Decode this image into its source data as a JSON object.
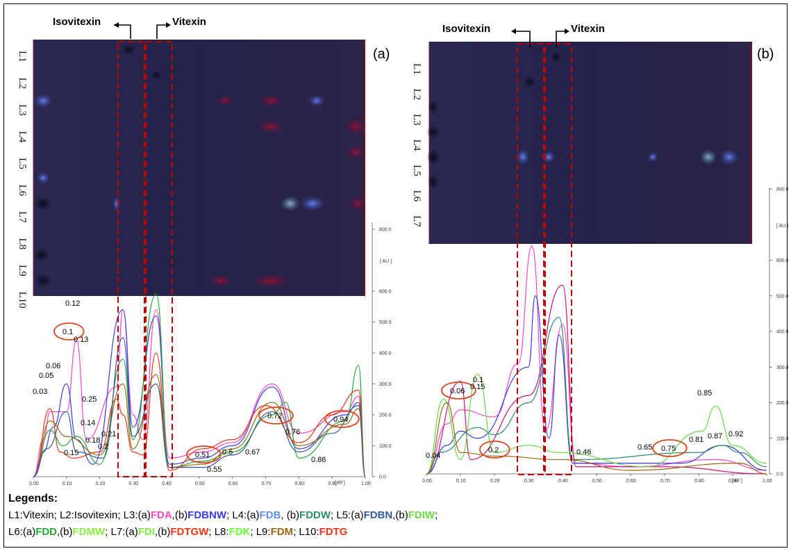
{
  "colors": {
    "plate": "#24234a",
    "guide": "#c00000",
    "circle": "#d9441a",
    "FDA": "#ff44cc",
    "FDBNW": "#3a3ae0",
    "FDB": "#5d8ef0",
    "FDDW": "#2e8b6b",
    "FDBN": "#33579a",
    "FDIW": "#66dd44",
    "FDD": "#22aa33",
    "FDMW": "#88ee44",
    "FDI": "#77ee44",
    "FDTGW": "#ee3311",
    "FDK": "#66ff33",
    "FDM": "#996611",
    "FDTG": "#ee3311"
  },
  "annotations": {
    "isovitexin": "Isovitexin",
    "vitexin": "Vitexin"
  },
  "panels": [
    {
      "id": "(a)",
      "lanes": [
        "L1",
        "L2",
        "L3",
        "L4",
        "L5",
        "L6",
        "L7",
        "L8",
        "L9",
        "L10"
      ],
      "au_label": "[ AU ]",
      "rf_label": "[ Rf ]",
      "y_ticks": [
        "0.0",
        "100.0",
        "200.0",
        "300.0",
        "400.0",
        "500.0",
        "600.0",
        "800.0"
      ],
      "x_ticks": [
        "0.00",
        "0.10",
        "0.20",
        "0.30",
        "0.40",
        "0.50",
        "0.60",
        "0.70",
        "0.80",
        "0.90",
        "1.00"
      ],
      "peak_labels": [
        "0.03",
        "0.05",
        "0.06",
        "0.1",
        "0.12",
        "0.13",
        "0.14",
        "0.18",
        "0.15",
        "0.2",
        "0.21",
        "0.25",
        "0.51",
        "0.55",
        "0.6",
        "0.67",
        "0.72",
        "0.76",
        "0.86",
        "0.94"
      ],
      "circled": [
        "0.1",
        "0.51",
        "0.72",
        "0.94"
      ]
    },
    {
      "id": "(b)",
      "lanes": [
        "L1",
        "L2",
        "L3",
        "L4",
        "L5",
        "L6",
        "L7"
      ],
      "au_label": "[ AU ]",
      "rf_label": "[ Rf ]",
      "y_ticks": [
        "0.0",
        "100.0",
        "200.0",
        "300.0",
        "400.0",
        "500.0",
        "600.0",
        "800.0"
      ],
      "x_ticks": [
        "0.00",
        "0.10",
        "0.20",
        "0.30",
        "0.40",
        "0.50",
        "0.60",
        "0.70",
        "0.80",
        "0.90",
        "1.00"
      ],
      "peak_labels": [
        "0.04",
        "0.06",
        "0.1",
        "0.15",
        "0.2",
        "0.46",
        "0.65",
        "0.75",
        "0.81",
        "0.85",
        "0.87",
        "0.92"
      ],
      "circled": [
        "0.06",
        "0.2",
        "0.75"
      ]
    }
  ],
  "legend": {
    "title": "Legends:",
    "line1": [
      {
        "t": "L1:Vitexin; L2:Isovitexin; L3:(a)"
      },
      {
        "t": "FDA",
        "c": "FDA"
      },
      {
        "t": ",(b)"
      },
      {
        "t": "FDBNW",
        "c": "FDBNW"
      },
      {
        "t": "; L4:(a)"
      },
      {
        "t": "FDB",
        "c": "FDB"
      },
      {
        "t": ", (b)"
      },
      {
        "t": "FDDW",
        "c": "FDDW"
      },
      {
        "t": "; L5:(a)"
      },
      {
        "t": "FDBN",
        "c": "FDBN"
      },
      {
        "t": ",(b)"
      },
      {
        "t": "FDIW",
        "c": "FDIW"
      },
      {
        "t": ";"
      }
    ],
    "line2": [
      {
        "t": "L6:(a)"
      },
      {
        "t": "FDD",
        "c": "FDD"
      },
      {
        "t": ",(b)"
      },
      {
        "t": "FDMW",
        "c": "FDMW"
      },
      {
        "t": "; L7:(a)"
      },
      {
        "t": "FDI",
        "c": "FDI"
      },
      {
        "t": ",(b)"
      },
      {
        "t": "FDTGW",
        "c": "FDTGW"
      },
      {
        "t": "; L8:"
      },
      {
        "t": "FDK",
        "c": "FDK"
      },
      {
        "t": "; L9:"
      },
      {
        "t": "FDM",
        "c": "FDM"
      },
      {
        "t": "; L10:"
      },
      {
        "t": "FDTG",
        "c": "FDTG"
      }
    ]
  },
  "chart_data": [
    {
      "type": "line",
      "panel": "(a)",
      "title": "",
      "xlabel": "[ Rf ]",
      "ylabel": "[ AU ]",
      "xlim": [
        0,
        1
      ],
      "ylim": [
        0,
        800
      ],
      "series": [
        {
          "color": "#ff44cc",
          "points": [
            [
              0,
              0
            ],
            [
              0.03,
              120
            ],
            [
              0.05,
              210
            ],
            [
              0.1,
              210
            ],
            [
              0.13,
              440
            ],
            [
              0.16,
              120
            ],
            [
              0.25,
              290
            ],
            [
              0.27,
              540
            ],
            [
              0.3,
              200
            ],
            [
              0.33,
              120
            ],
            [
              0.37,
              540
            ],
            [
              0.41,
              60
            ],
            [
              0.51,
              80
            ],
            [
              0.6,
              110
            ],
            [
              0.72,
              300
            ],
            [
              0.8,
              140
            ],
            [
              0.94,
              210
            ],
            [
              0.98,
              260
            ],
            [
              1,
              0
            ]
          ]
        },
        {
          "color": "#3a3ae0",
          "points": [
            [
              0,
              0
            ],
            [
              0.03,
              80
            ],
            [
              0.06,
              160
            ],
            [
              0.1,
              300
            ],
            [
              0.13,
              120
            ],
            [
              0.18,
              40
            ],
            [
              0.27,
              540
            ],
            [
              0.3,
              160
            ],
            [
              0.37,
              520
            ],
            [
              0.41,
              40
            ],
            [
              0.51,
              60
            ],
            [
              0.6,
              100
            ],
            [
              0.72,
              290
            ],
            [
              0.8,
              90
            ],
            [
              0.94,
              200
            ],
            [
              0.98,
              240
            ],
            [
              1,
              0
            ]
          ]
        },
        {
          "color": "#22aa33",
          "points": [
            [
              0,
              0
            ],
            [
              0.05,
              150
            ],
            [
              0.09,
              100
            ],
            [
              0.13,
              130
            ],
            [
              0.2,
              40
            ],
            [
              0.27,
              380
            ],
            [
              0.3,
              120
            ],
            [
              0.37,
              590
            ],
            [
              0.41,
              30
            ],
            [
              0.51,
              50
            ],
            [
              0.6,
              80
            ],
            [
              0.72,
              200
            ],
            [
              0.76,
              240
            ],
            [
              0.8,
              60
            ],
            [
              0.94,
              180
            ],
            [
              0.98,
              360
            ],
            [
              1,
              0
            ]
          ]
        },
        {
          "color": "#ee3311",
          "points": [
            [
              0,
              0
            ],
            [
              0.05,
              220
            ],
            [
              0.08,
              80
            ],
            [
              0.12,
              60
            ],
            [
              0.2,
              80
            ],
            [
              0.25,
              250
            ],
            [
              0.27,
              200
            ],
            [
              0.3,
              80
            ],
            [
              0.33,
              70
            ],
            [
              0.37,
              400
            ],
            [
              0.41,
              20
            ],
            [
              0.51,
              90
            ],
            [
              0.6,
              120
            ],
            [
              0.7,
              230
            ],
            [
              0.8,
              110
            ],
            [
              0.9,
              200
            ],
            [
              0.98,
              280
            ],
            [
              1,
              0
            ]
          ]
        },
        {
          "color": "#996611",
          "points": [
            [
              0,
              0
            ],
            [
              0.05,
              180
            ],
            [
              0.1,
              130
            ],
            [
              0.2,
              70
            ],
            [
              0.27,
              300
            ],
            [
              0.3,
              90
            ],
            [
              0.37,
              330
            ],
            [
              0.41,
              30
            ],
            [
              0.51,
              40
            ],
            [
              0.6,
              90
            ],
            [
              0.72,
              240
            ],
            [
              0.8,
              100
            ],
            [
              0.94,
              170
            ],
            [
              0.98,
              220
            ],
            [
              1,
              0
            ]
          ]
        },
        {
          "color": "#33579a",
          "points": [
            [
              0,
              0
            ],
            [
              0.04,
              90
            ],
            [
              0.1,
              210
            ],
            [
              0.13,
              80
            ],
            [
              0.21,
              60
            ],
            [
              0.27,
              450
            ],
            [
              0.3,
              130
            ],
            [
              0.37,
              300
            ],
            [
              0.41,
              30
            ],
            [
              0.51,
              30
            ],
            [
              0.6,
              70
            ],
            [
              0.72,
              210
            ],
            [
              0.8,
              80
            ],
            [
              0.9,
              140
            ],
            [
              0.98,
              230
            ],
            [
              1,
              0
            ]
          ]
        }
      ]
    },
    {
      "type": "line",
      "panel": "(b)",
      "title": "",
      "xlabel": "[ Rf ]",
      "ylabel": "[ AU ]",
      "xlim": [
        0,
        1
      ],
      "ylim": [
        0,
        800
      ],
      "series": [
        {
          "color": "#ff44cc",
          "points": [
            [
              0,
              0
            ],
            [
              0.06,
              140
            ],
            [
              0.1,
              180
            ],
            [
              0.2,
              160
            ],
            [
              0.27,
              310
            ],
            [
              0.31,
              640
            ],
            [
              0.35,
              120
            ],
            [
              0.4,
              420
            ],
            [
              0.44,
              30
            ],
            [
              0.6,
              20
            ],
            [
              0.85,
              40
            ],
            [
              1,
              10
            ]
          ]
        },
        {
          "color": "#cc1177",
          "points": [
            [
              0,
              0
            ],
            [
              0.1,
              260
            ],
            [
              0.13,
              40
            ],
            [
              0.3,
              220
            ],
            [
              0.4,
              530
            ],
            [
              0.44,
              20
            ],
            [
              0.7,
              20
            ],
            [
              1,
              0
            ]
          ]
        },
        {
          "color": "#3a3ae0",
          "points": [
            [
              0,
              0
            ],
            [
              0.06,
              80
            ],
            [
              0.1,
              120
            ],
            [
              0.15,
              100
            ],
            [
              0.3,
              300
            ],
            [
              0.32,
              500
            ],
            [
              0.36,
              100
            ],
            [
              0.39,
              390
            ],
            [
              0.43,
              30
            ],
            [
              0.75,
              30
            ],
            [
              0.87,
              80
            ],
            [
              1,
              10
            ]
          ]
        },
        {
          "color": "#2e8b6b",
          "points": [
            [
              0,
              0
            ],
            [
              0.04,
              60
            ],
            [
              0.15,
              130
            ],
            [
              0.2,
              110
            ],
            [
              0.3,
              200
            ],
            [
              0.39,
              440
            ],
            [
              0.43,
              40
            ],
            [
              0.8,
              60
            ],
            [
              0.87,
              80
            ],
            [
              0.92,
              60
            ],
            [
              1,
              20
            ]
          ]
        },
        {
          "color": "#66dd44",
          "points": [
            [
              0,
              0
            ],
            [
              0.05,
              210
            ],
            [
              0.1,
              40
            ],
            [
              0.15,
              280
            ],
            [
              0.2,
              60
            ],
            [
              0.3,
              80
            ],
            [
              0.39,
              60
            ],
            [
              0.65,
              20
            ],
            [
              0.81,
              120
            ],
            [
              0.85,
              190
            ],
            [
              0.9,
              80
            ],
            [
              1,
              30
            ]
          ]
        },
        {
          "color": "#996611",
          "points": [
            [
              0,
              0
            ],
            [
              0.06,
              200
            ],
            [
              0.1,
              60
            ],
            [
              0.2,
              50
            ],
            [
              0.4,
              40
            ],
            [
              0.6,
              10
            ],
            [
              0.92,
              30
            ],
            [
              1,
              0
            ]
          ]
        }
      ]
    }
  ]
}
